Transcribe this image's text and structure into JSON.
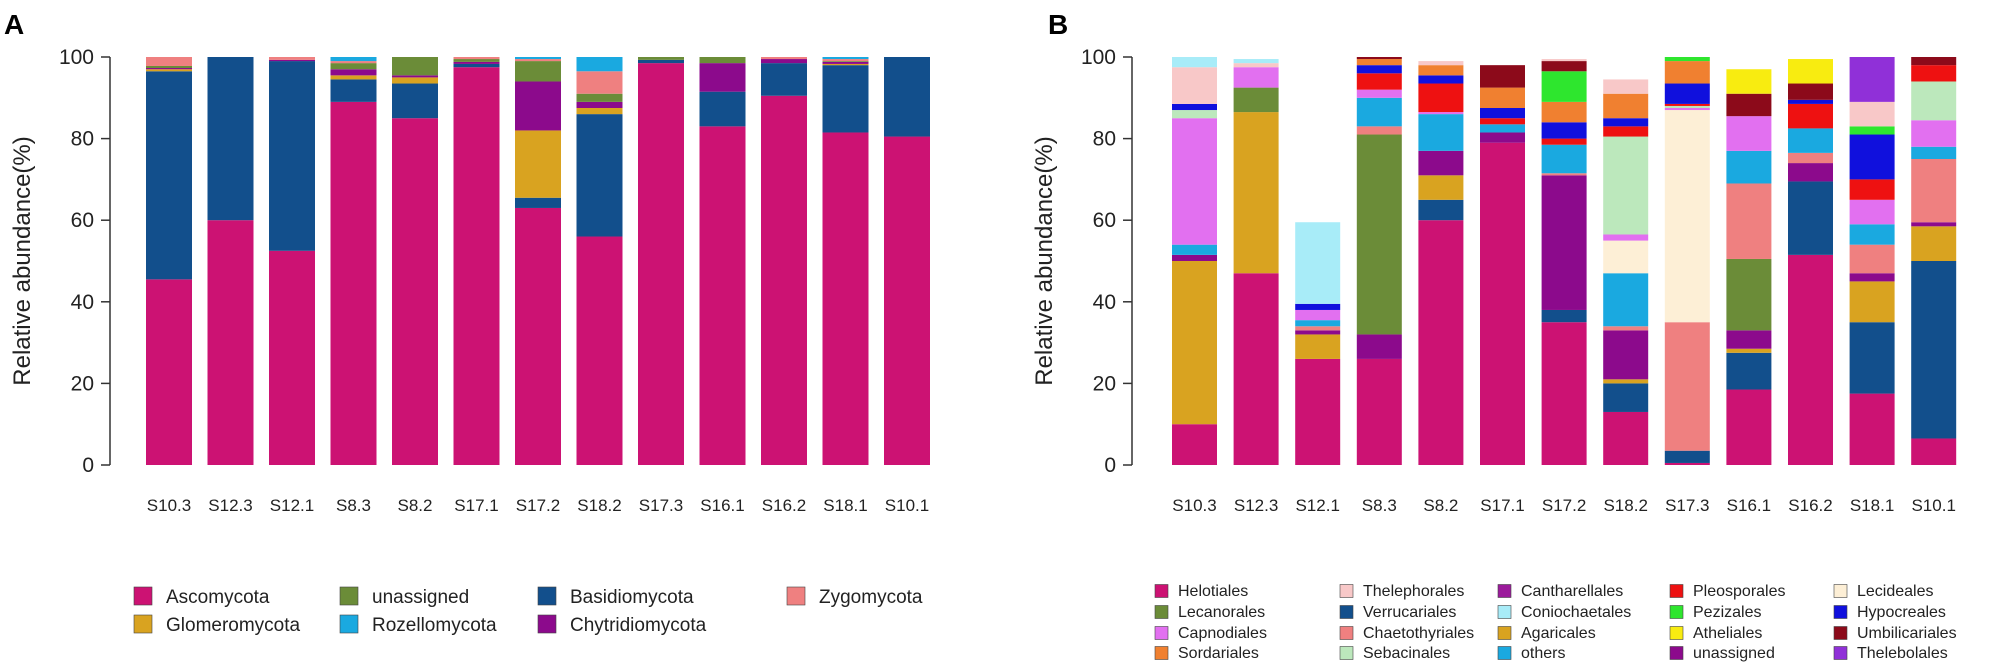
{
  "chart_data": [
    {
      "panel": "A",
      "type": "stacked-bar",
      "ylabel": "Relative abundance(%)",
      "ylim": [
        0,
        100
      ],
      "yticks": [
        "0",
        "20",
        "40",
        "60",
        "80",
        "100"
      ],
      "categories": [
        "S10.3",
        "S12.3",
        "S12.1",
        "S8.3",
        "S8.2",
        "S17.1",
        "S17.2",
        "S18.2",
        "S17.3",
        "S16.1",
        "S16.2",
        "S18.1",
        "S10.1"
      ],
      "series": [
        {
          "name": "Ascomycota",
          "color": "#cc1273",
          "values": [
            45.5,
            60,
            52.5,
            89,
            85,
            97.5,
            63,
            56,
            98.5,
            83,
            90.5,
            81.5,
            80.5
          ]
        },
        {
          "name": "Basidiomycota",
          "color": "#124f8c",
          "values": [
            51,
            40,
            46.5,
            5.5,
            8.5,
            0.8,
            2.5,
            30,
            0.8,
            8.5,
            8,
            16.5,
            19.5
          ]
        },
        {
          "name": "Glomeromycota",
          "color": "#d9a320",
          "values": [
            0.5,
            0,
            0,
            1,
            1.5,
            0,
            16.5,
            1.5,
            0,
            0,
            0,
            0.3,
            0
          ]
        },
        {
          "name": "Chytridiomycota",
          "color": "#8c0a8c",
          "values": [
            0.3,
            0,
            0.3,
            1.5,
            0.5,
            0.5,
            12,
            1.5,
            0,
            7,
            1,
            0.5,
            0
          ]
        },
        {
          "name": "unassigned",
          "color": "#6b8c38",
          "values": [
            0.5,
            0,
            0,
            1.5,
            4.5,
            0.7,
            5,
            2,
            0.7,
            1.5,
            0,
            0.2,
            0
          ]
        },
        {
          "name": "Zygomycota",
          "color": "#ef8080",
          "values": [
            2.2,
            0,
            0.7,
            0.5,
            0,
            0.5,
            0.5,
            5.5,
            0,
            0,
            0.5,
            0.5,
            0
          ]
        },
        {
          "name": "Rozellomycota",
          "color": "#1aa9e0",
          "values": [
            0,
            0,
            0,
            1,
            0,
            0,
            0.5,
            3.5,
            0,
            0,
            0,
            0.5,
            0
          ]
        }
      ],
      "legend_order": [
        "Ascomycota",
        "Glomeromycota",
        "unassigned",
        "Rozellomycota",
        "Basidiomycota",
        "Chytridiomycota",
        "Zygomycota"
      ]
    },
    {
      "panel": "B",
      "type": "stacked-bar",
      "ylabel": "Relative abundance(%)",
      "ylim": [
        0,
        100
      ],
      "yticks": [
        "0",
        "20",
        "40",
        "60",
        "80",
        "100"
      ],
      "categories": [
        "S10.3",
        "S12.3",
        "S12.1",
        "S8.3",
        "S8.2",
        "S17.1",
        "S17.2",
        "S18.2",
        "S17.3",
        "S16.1",
        "S16.2",
        "S18.1",
        "S10.1"
      ],
      "series": [
        {
          "name": "Helotiales",
          "color": "#cc1273",
          "values": [
            10,
            47,
            26,
            26,
            60,
            79,
            35,
            13,
            0.5,
            18.5,
            51.5,
            17.5,
            6.5
          ]
        },
        {
          "name": "Verrucariales",
          "color": "#124f8c",
          "values": [
            0,
            0,
            0,
            0,
            5,
            0,
            3,
            7,
            3,
            9,
            18,
            17.5,
            43.5
          ]
        },
        {
          "name": "Agaricales",
          "color": "#d9a320",
          "values": [
            40,
            39.5,
            6,
            0,
            6,
            0,
            0,
            1,
            0,
            1,
            0,
            10,
            8.5
          ]
        },
        {
          "name": "unassigned",
          "color": "#8c0a8c",
          "values": [
            1.5,
            0,
            1,
            6,
            6,
            2.5,
            33,
            12,
            0,
            4.5,
            4.5,
            2,
            1
          ]
        },
        {
          "name": "Lecanorales",
          "color": "#6b8c38",
          "values": [
            0,
            6,
            0,
            49,
            0,
            0,
            0,
            0,
            0,
            17.5,
            0,
            0,
            0
          ]
        },
        {
          "name": "Chaetothyriales",
          "color": "#ef8080",
          "values": [
            0,
            0,
            1,
            2,
            0,
            0,
            0.5,
            1,
            31.5,
            18.5,
            2.5,
            7,
            15.5
          ]
        },
        {
          "name": "others",
          "color": "#1aa9e0",
          "values": [
            2.5,
            0,
            1.5,
            7,
            9,
            2,
            7,
            13,
            0,
            8,
            6,
            5,
            3
          ]
        },
        {
          "name": "Lecideales",
          "color": "#fdefd6",
          "values": [
            0,
            0,
            0,
            0,
            0,
            0,
            0,
            8,
            52,
            0,
            0,
            0,
            0
          ]
        },
        {
          "name": "Capnodiales",
          "color": "#e270f0",
          "values": [
            31,
            5,
            2.5,
            2,
            0.5,
            0,
            0,
            1.5,
            0.5,
            8.5,
            0,
            6,
            6.5
          ]
        },
        {
          "name": "Sebacinales",
          "color": "#bce8bc",
          "values": [
            2,
            0,
            0,
            0,
            0,
            0,
            0,
            24,
            0.5,
            0,
            0,
            0,
            9.5
          ]
        },
        {
          "name": "Pleosporales",
          "color": "#ee1111",
          "values": [
            0,
            0,
            0,
            4,
            7,
            1.5,
            1.5,
            2.5,
            0.5,
            0,
            6,
            5,
            4
          ]
        },
        {
          "name": "Hypocreales",
          "color": "#1010dd",
          "values": [
            1.5,
            0,
            1.5,
            2,
            2,
            2.5,
            4,
            2,
            5,
            0,
            1,
            11,
            0
          ]
        },
        {
          "name": "Sordariales",
          "color": "#f08030",
          "values": [
            0,
            0,
            0,
            1.5,
            2.5,
            5,
            5,
            6,
            5.5,
            0,
            0,
            0,
            0
          ]
        },
        {
          "name": "Cantharellales",
          "color": "#9c1b9c",
          "values": [
            0,
            0,
            0,
            0,
            0,
            0,
            0,
            0,
            0,
            0,
            0,
            0,
            0
          ]
        },
        {
          "name": "Pezizales",
          "color": "#2ee62e",
          "values": [
            0,
            0,
            0,
            0,
            0,
            0,
            7.5,
            0,
            1,
            0,
            0,
            2,
            0
          ]
        },
        {
          "name": "Umbilicariales",
          "color": "#8c0a1a",
          "values": [
            0,
            0,
            0,
            1,
            0,
            5.5,
            2.5,
            0,
            0,
            5.5,
            4,
            0,
            2
          ]
        },
        {
          "name": "Thelephorales",
          "color": "#f8c8c8",
          "values": [
            9,
            1,
            0,
            0,
            1,
            0,
            0.5,
            3.5,
            0,
            0,
            0,
            6,
            0
          ]
        },
        {
          "name": "Coniochaetales",
          "color": "#a8ecf8",
          "values": [
            2.5,
            1,
            20,
            0,
            0,
            0,
            0,
            0,
            0,
            0,
            0,
            0,
            0
          ]
        },
        {
          "name": "Atheliales",
          "color": "#f8ec10",
          "values": [
            0,
            0,
            0,
            0,
            0,
            0,
            0,
            0,
            0,
            6,
            6,
            0,
            0
          ]
        },
        {
          "name": "Thelebolales",
          "color": "#9030d8",
          "values": [
            0,
            0,
            0,
            0,
            0,
            0,
            0,
            0,
            0,
            0,
            0,
            11,
            0
          ]
        }
      ],
      "legend_order": [
        "Helotiales",
        "Lecanorales",
        "Capnodiales",
        "Sordariales",
        "Thelephorales",
        "Verrucariales",
        "Chaetothyriales",
        "Sebacinales",
        "Cantharellales",
        "Coniochaetales",
        "Agaricales",
        "others",
        "Pleosporales",
        "Pezizales",
        "Atheliales",
        "unassigned",
        "Lecideales",
        "Hypocreales",
        "Umbilicariales",
        "Thelebolales"
      ]
    }
  ]
}
